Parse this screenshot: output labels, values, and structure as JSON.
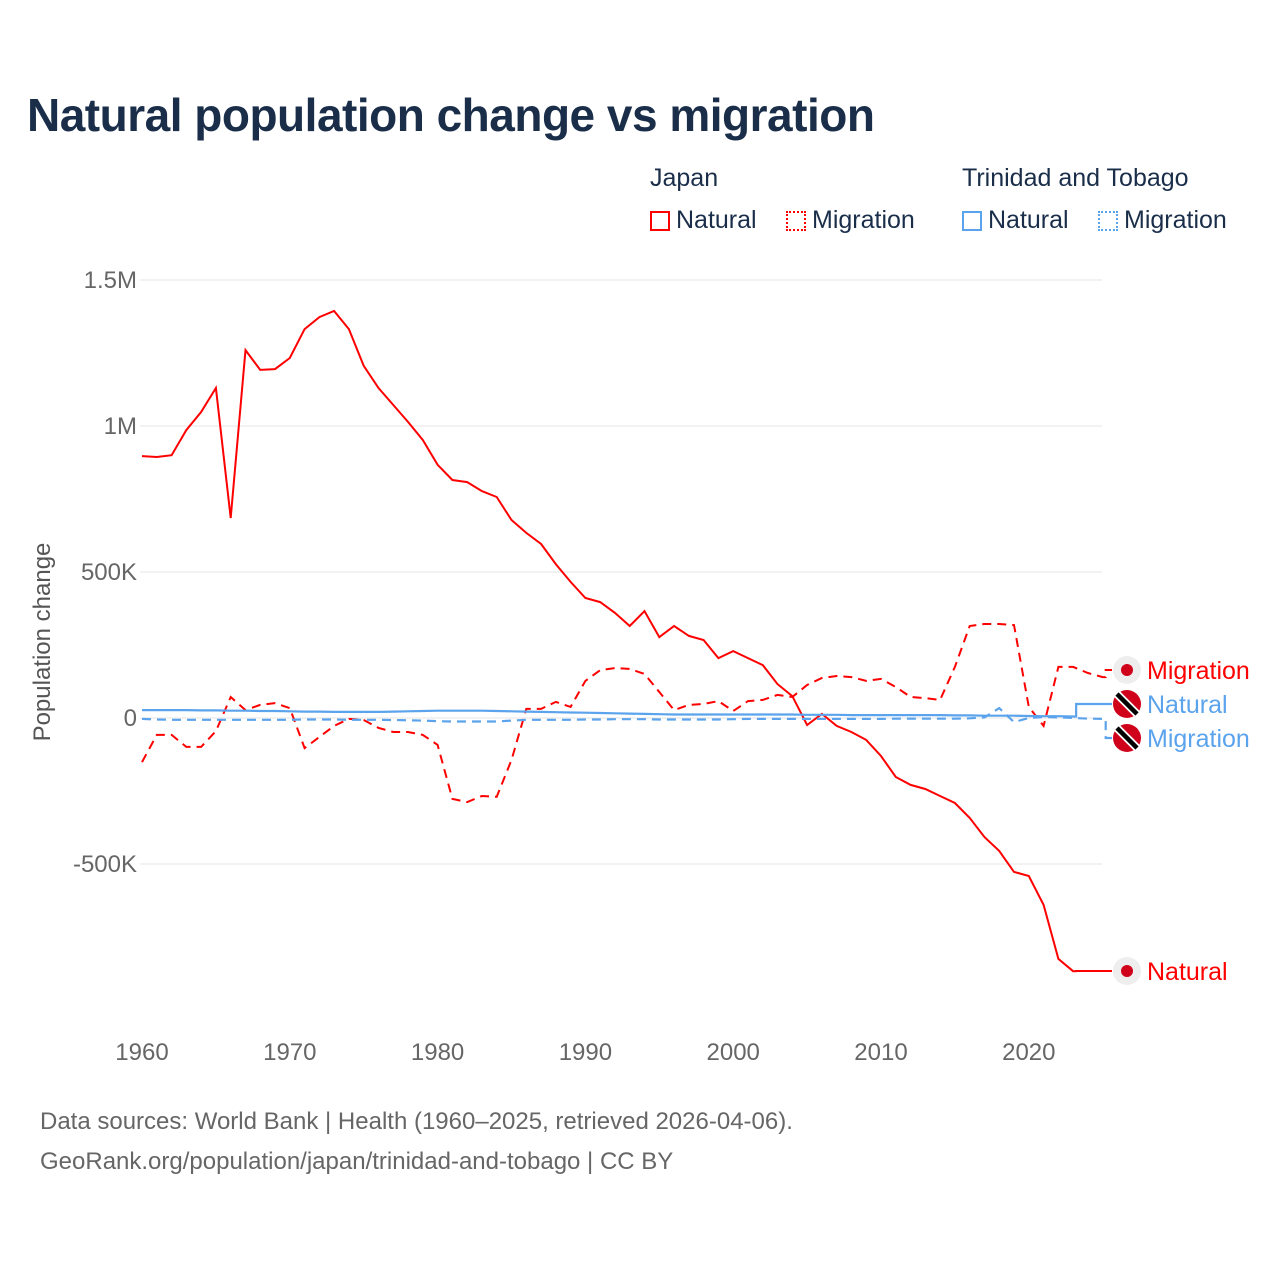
{
  "title": "Natural population change vs migration",
  "legend": {
    "groups": [
      {
        "name": "Japan",
        "items": [
          {
            "label": "Natural",
            "color": "#ff0000",
            "style": "solid"
          },
          {
            "label": "Migration",
            "color": "#ff0000",
            "style": "dotted"
          }
        ]
      },
      {
        "name": "Trinidad and Tobago",
        "items": [
          {
            "label": "Natural",
            "color": "#5ba3ec",
            "style": "solid"
          },
          {
            "label": "Migration",
            "color": "#5ba3ec",
            "style": "dotted"
          }
        ]
      }
    ]
  },
  "footer": {
    "line1": "Data sources: World Bank | Health (1960–2025, retrieved 2026-04-06).",
    "line2": "GeoRank.org/population/japan/trinidad-and-tobago | CC BY"
  },
  "chart_data": {
    "type": "line",
    "title": "Natural population change vs migration",
    "xlabel": "",
    "ylabel": "Population change",
    "xlim": [
      1960,
      2025
    ],
    "ylim": [
      -1000000,
      1500000
    ],
    "x_ticks": [
      {
        "value": 1960,
        "label": "1960"
      },
      {
        "value": 1970,
        "label": "1970"
      },
      {
        "value": 1980,
        "label": "1980"
      },
      {
        "value": 1990,
        "label": "1990"
      },
      {
        "value": 2000,
        "label": "2000"
      },
      {
        "value": 2010,
        "label": "2010"
      },
      {
        "value": 2020,
        "label": "2020"
      }
    ],
    "y_ticks": [
      {
        "value": 1500000,
        "label": "1.5M"
      },
      {
        "value": 1000000,
        "label": "1M"
      },
      {
        "value": 500000,
        "label": "500K"
      },
      {
        "value": 0,
        "label": "0"
      },
      {
        "value": -500000,
        "label": "-500K"
      }
    ],
    "grid": true,
    "series": [
      {
        "name": "Japan Natural",
        "end_label": "Natural",
        "color": "#ff0000",
        "dash": false,
        "start": 1960,
        "values": [
          897000,
          894000,
          900000,
          986000,
          1048000,
          1130000,
          685000,
          1260000,
          1192000,
          1195000,
          1233000,
          1332000,
          1373000,
          1394000,
          1332000,
          1206000,
          1130000,
          1072000,
          1014000,
          952000,
          867000,
          815000,
          808000,
          777000,
          757000,
          678000,
          634000,
          596000,
          527000,
          466000,
          411000,
          397000,
          360000,
          315000,
          366000,
          277000,
          315000,
          281000,
          267000,
          205000,
          229000,
          205000,
          181000,
          116000,
          75000,
          -24000,
          14000,
          -27000,
          -48000,
          -75000,
          -130000,
          -202000,
          -229000,
          -243000,
          -267000,
          -291000,
          -342000,
          -408000,
          -455000,
          -527000,
          -541000,
          -640000,
          -825000,
          -867000
        ]
      },
      {
        "name": "Japan Migration",
        "end_label": "Migration",
        "color": "#ff0000",
        "dash": true,
        "start": 1960,
        "values": [
          -151000,
          -58000,
          -58000,
          -99000,
          -99000,
          -45000,
          72000,
          27000,
          45000,
          51000,
          34000,
          -103000,
          -65000,
          -27000,
          -3000,
          -7000,
          -34000,
          -48000,
          -48000,
          -58000,
          -92000,
          -277000,
          -288000,
          -267000,
          -270000,
          -144000,
          31000,
          31000,
          55000,
          38000,
          127000,
          164000,
          171000,
          168000,
          151000,
          89000,
          27000,
          45000,
          48000,
          58000,
          24000,
          58000,
          62000,
          79000,
          72000,
          113000,
          137000,
          144000,
          140000,
          127000,
          134000,
          106000,
          72000,
          68000,
          62000,
          175000,
          315000,
          322000,
          322000,
          318000,
          38000,
          -27000,
          175000,
          175000,
          154000,
          140000
        ]
      },
      {
        "name": "Trinidad and Tobago Natural",
        "end_label": "Natural",
        "color": "#5ba3ec",
        "dash": false,
        "start": 1960,
        "values": [
          27000,
          27000,
          27000,
          27000,
          26000,
          26000,
          25000,
          25000,
          24000,
          24000,
          23000,
          22000,
          22000,
          21000,
          21000,
          21000,
          21000,
          22000,
          23000,
          24000,
          25000,
          25000,
          25000,
          25000,
          24000,
          23000,
          22000,
          21000,
          20000,
          19000,
          18000,
          17000,
          16000,
          15000,
          14000,
          13000,
          12000,
          12000,
          12000,
          12000,
          12000,
          12000,
          12000,
          12000,
          12000,
          11000,
          11000,
          11000,
          10000,
          10000,
          10000,
          10000,
          10000,
          10000,
          10000,
          9000,
          9000,
          8000,
          8000,
          8000,
          7000,
          6000,
          6000,
          5000
        ]
      },
      {
        "name": "Trinidad and Tobago Migration",
        "end_label": "Migration",
        "color": "#5ba3ec",
        "dash": true,
        "start": 1960,
        "values": [
          -3000,
          -5000,
          -6000,
          -6000,
          -6000,
          -6000,
          -6000,
          -6000,
          -6000,
          -6000,
          -6000,
          -5000,
          -5000,
          -5000,
          -6000,
          -6000,
          -6000,
          -7000,
          -8000,
          -9000,
          -11000,
          -12000,
          -12000,
          -12000,
          -12000,
          -9000,
          -6000,
          -6000,
          -6000,
          -6000,
          -5000,
          -5000,
          -4000,
          -4000,
          -4000,
          -5000,
          -5000,
          -5000,
          -5000,
          -5000,
          -4000,
          -3000,
          -3000,
          -3000,
          -3000,
          -3000,
          -3000,
          -3000,
          -3000,
          -3000,
          -3000,
          -2000,
          -2000,
          -2000,
          -2000,
          -2000,
          -1000,
          2000,
          34000,
          -14000,
          0,
          3000,
          2000,
          0,
          -2000,
          -3000
        ]
      }
    ]
  }
}
